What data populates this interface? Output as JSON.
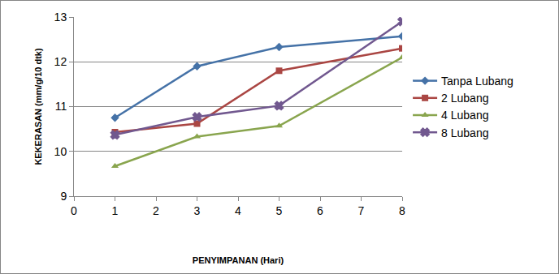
{
  "chart_data": {
    "type": "line",
    "x_label": "PENYIMPANAN (Hari)",
    "y_label": "KEKERASAN (mm/g/10 dtk)",
    "x": [
      1,
      3,
      5,
      8
    ],
    "series": [
      {
        "name": "Tanpa Lubang",
        "color": "#4572a7",
        "marker": "diamond",
        "values": [
          10.75,
          11.9,
          12.33,
          12.57
        ]
      },
      {
        "name": "2 Lubang",
        "color": "#aa4643",
        "marker": "square",
        "values": [
          10.43,
          10.62,
          11.8,
          12.3
        ]
      },
      {
        "name": "4 Lubang",
        "color": "#89a54e",
        "marker": "triangle-up",
        "values": [
          9.67,
          10.33,
          10.57,
          12.1
        ]
      },
      {
        "name": "8 Lubang",
        "color": "#71588f",
        "marker": "x",
        "values": [
          10.37,
          10.77,
          11.02,
          12.9
        ]
      }
    ],
    "xlim": [
      0,
      8
    ],
    "xticks": [
      0,
      1,
      2,
      3,
      4,
      5,
      6,
      7,
      8
    ],
    "ylim": [
      9,
      13
    ],
    "yticks": [
      9,
      10,
      11,
      12,
      13
    ],
    "grid": true,
    "legend": "right"
  }
}
